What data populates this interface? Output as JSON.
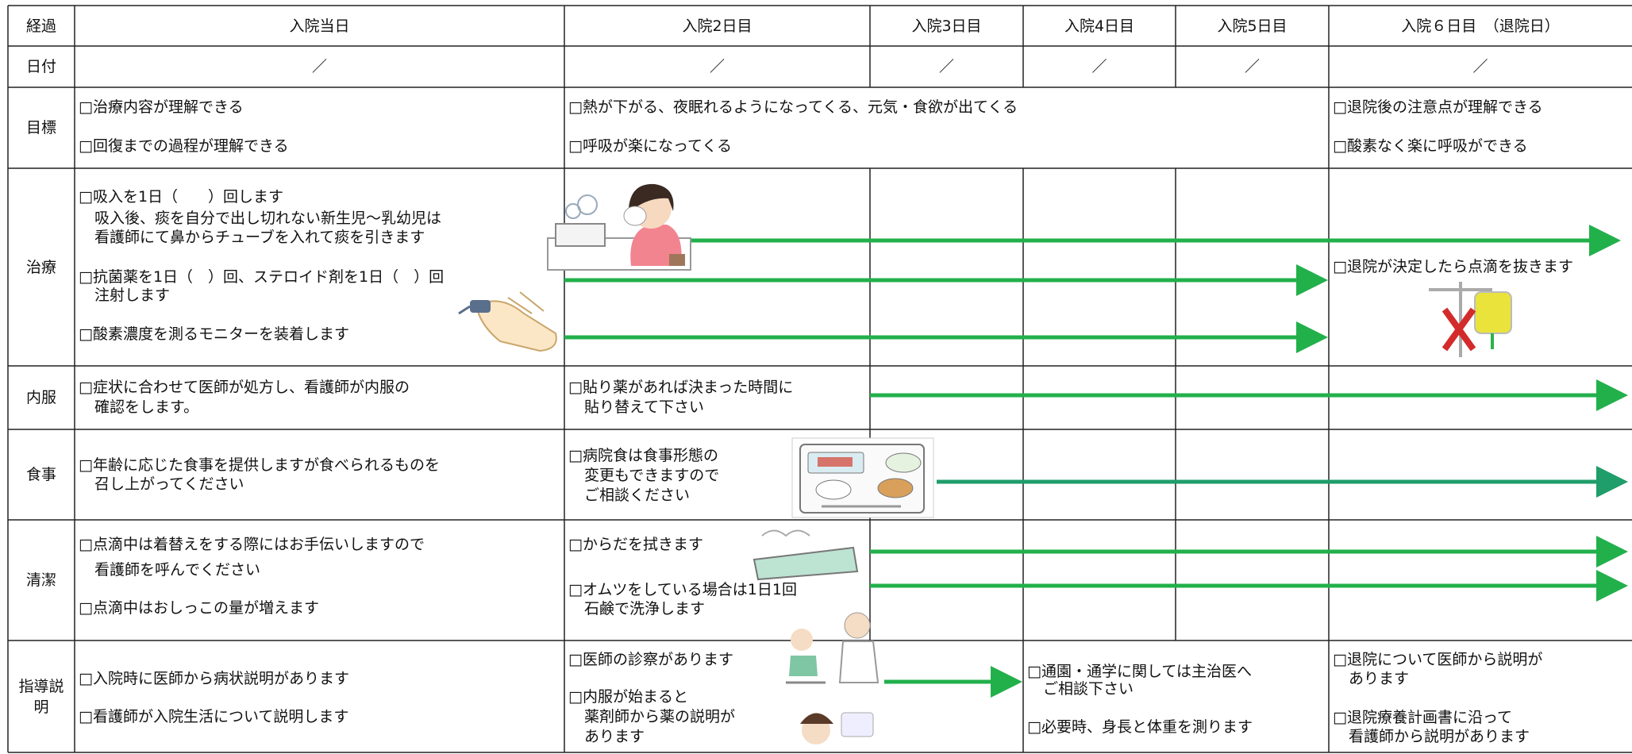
{
  "header": {
    "label": "経過",
    "days": [
      "入院当日",
      "入院2日目",
      "入院3日目",
      "入院4日目",
      "入院5日目",
      "入院６日目　（退院日）"
    ]
  },
  "dates": {
    "label": "日付",
    "values": [
      "／",
      "／",
      "／",
      "／",
      "／",
      "／"
    ]
  },
  "rows": [
    {
      "label": "目標",
      "cells": [
        [
          "□治療内容が理解できる",
          "□回復までの過程が理解できる"
        ],
        [
          "□熱が下がる、夜眠れるようになってくる、元気・食欲が出てくる",
          "□呼吸が楽になってくる"
        ],
        [
          "□退院後の注意点が理解できる",
          "□酸素なく楽に呼吸ができる"
        ]
      ]
    },
    {
      "label": "治療",
      "cells": [
        [
          "□吸入を1日（　　）回します",
          "吸入後、痰を自分で出し切れない新生児～乳幼児は",
          "看護師にて鼻からチューブを入れて痰を引きます",
          "□抗菌薬を1日（　）回、ステロイド剤を1日（　）回",
          "注射します",
          "□酸素濃度を測るモニターを装着します"
        ],
        [
          "□退院が決定したら点滴を抜きます"
        ]
      ]
    },
    {
      "label": "内服",
      "cells": [
        [
          "□症状に合わせて医師が処方し、看護師が内服の",
          "確認をします。"
        ],
        [
          "□貼り薬があれば決まった時間に",
          "貼り替えて下さい"
        ]
      ]
    },
    {
      "label": "食事",
      "cells": [
        [
          "□年齢に応じた食事を提供しますが食べられるものを",
          "召し上がってください"
        ],
        [
          "□病院食は食事形態の",
          "変更もできますので",
          "ご相談ください"
        ]
      ]
    },
    {
      "label": "清潔",
      "cells": [
        [
          "□点滴中は着替えをする際にはお手伝いしますので",
          "看護師を呼んでください",
          "□点滴中はおしっこの量が増えます"
        ],
        [
          "□からだを拭きます",
          "□オムツをしている場合は1日1回",
          "石鹸で洗浄します"
        ]
      ]
    },
    {
      "label": "指導説明",
      "cells": [
        [
          "□入院時に医師から病状説明があります",
          "□看護師が入院生活について説明します"
        ],
        [
          "□医師の診察があります",
          "□内服が始まると",
          "薬剤師から薬の説明が",
          "あります"
        ],
        [
          "□通園・通学に関しては主治医へ",
          "ご相談下さい",
          "□必要時、身長と体重を測ります"
        ],
        [
          "□退院について医師から説明が",
          "あります",
          "□退院療養計画書に沿って",
          "看護師から説明があります"
        ]
      ]
    }
  ]
}
